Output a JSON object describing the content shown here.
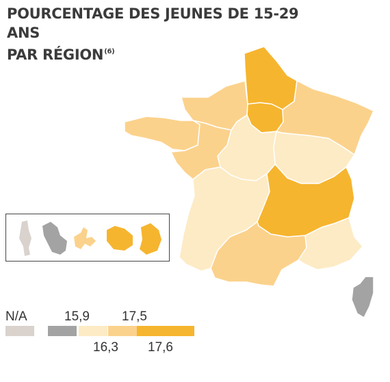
{
  "title": {
    "line1": "POURCENTAGE DES JEUNES DE 15-29 ANS",
    "line2": "PAR RÉGION",
    "note": "(6)"
  },
  "colors": {
    "na": "#d9d2cd",
    "c1": "#a3a3a3",
    "c2": "#fdebc5",
    "c3": "#fbd28c",
    "c4": "#f6b52f",
    "border": "#ffffff"
  },
  "legend": {
    "na_label": "N/A",
    "top_labels": [
      "15,9",
      "17,5"
    ],
    "bottom_labels": [
      "16,3",
      "17,6"
    ],
    "classes": [
      "na",
      "c1",
      "c2",
      "c3",
      "c4"
    ]
  },
  "regions": [
    {
      "name": "Hauts-de-France",
      "class": "c4"
    },
    {
      "name": "Île-de-France",
      "class": "c4"
    },
    {
      "name": "Grand Est",
      "class": "c3"
    },
    {
      "name": "Normandie",
      "class": "c3"
    },
    {
      "name": "Bretagne",
      "class": "c3"
    },
    {
      "name": "Pays de la Loire",
      "class": "c3"
    },
    {
      "name": "Centre-Val de Loire",
      "class": "c2"
    },
    {
      "name": "Bourgogne-Franche-Comté",
      "class": "c2"
    },
    {
      "name": "Nouvelle-Aquitaine",
      "class": "c2"
    },
    {
      "name": "Auvergne-Rhône-Alpes",
      "class": "c4"
    },
    {
      "name": "Occitanie",
      "class": "c3"
    },
    {
      "name": "Provence-Alpes-Côte d'Azur",
      "class": "c2"
    },
    {
      "name": "Corse",
      "class": "c1"
    },
    {
      "name": "Mayotte",
      "class": "na"
    },
    {
      "name": "Martinique",
      "class": "c1"
    },
    {
      "name": "Guadeloupe",
      "class": "c3"
    },
    {
      "name": "La Réunion",
      "class": "c4"
    },
    {
      "name": "Guyane",
      "class": "c4"
    }
  ]
}
